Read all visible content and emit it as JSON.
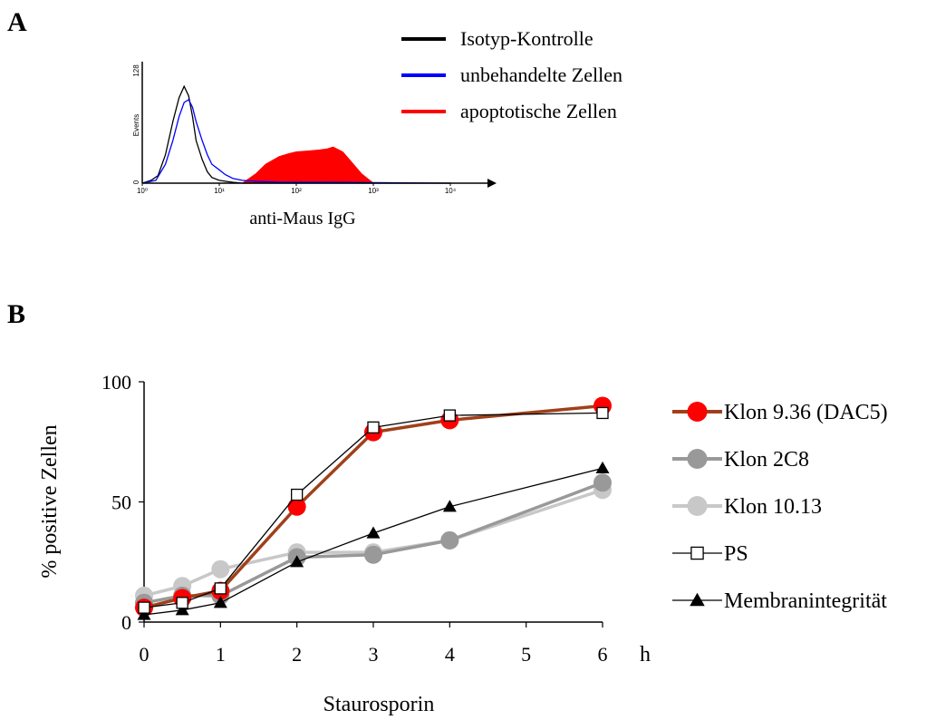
{
  "panel_a": {
    "letter": "A",
    "legend": [
      {
        "label": "Isotyp-Kontrolle",
        "color": "#000000"
      },
      {
        "label": "unbehandelte Zellen",
        "color": "#0000ff"
      },
      {
        "label": "apoptotische Zellen",
        "color": "#ff0000"
      }
    ],
    "y_axis_label": "Events",
    "y_max_label": "128",
    "y_min_label": "0",
    "x_ticks": [
      "10⁰",
      "10¹",
      "10²",
      "10³",
      "10⁴"
    ],
    "x_axis_label": "anti-Maus IgG"
  },
  "panel_b": {
    "letter": "B"
  },
  "chart_data": [
    {
      "type": "area",
      "description_source": "flow cytometry histogram",
      "xlabel": "anti-Maus IgG",
      "ylabel": "Events",
      "x_scale": "log",
      "xlim": [
        1,
        10000
      ],
      "ylim": [
        0,
        128
      ],
      "series": [
        {
          "name": "Isotyp-Kontrolle",
          "color": "#000000",
          "style": "line",
          "x": [
            1,
            1.3,
            1.6,
            2,
            2.5,
            3,
            3.5,
            4,
            4.5,
            5,
            6,
            7,
            8,
            10,
            12,
            15,
            20,
            30,
            100,
            10000
          ],
          "y": [
            0,
            3,
            8,
            30,
            65,
            90,
            102,
            92,
            70,
            45,
            25,
            12,
            6,
            3,
            2,
            1,
            0,
            0,
            0,
            0
          ]
        },
        {
          "name": "unbehandelte Zellen",
          "color": "#0000ff",
          "style": "line",
          "x": [
            1,
            1.5,
            2,
            2.5,
            3,
            3.5,
            4,
            4.5,
            5,
            6,
            7,
            8,
            10,
            12,
            15,
            20,
            30,
            60,
            200,
            10000
          ],
          "y": [
            0,
            3,
            20,
            45,
            70,
            85,
            88,
            80,
            65,
            45,
            30,
            20,
            14,
            9,
            5,
            3,
            2,
            1,
            1,
            0
          ]
        },
        {
          "name": "apoptotische Zellen",
          "color": "#ff0000",
          "style": "fill",
          "x": [
            1,
            20,
            30,
            40,
            60,
            80,
            100,
            150,
            200,
            250,
            300,
            400,
            500,
            700,
            1000,
            10000
          ],
          "y": [
            0,
            0,
            10,
            20,
            28,
            31,
            33,
            34,
            35,
            36,
            38,
            33,
            24,
            10,
            0,
            0
          ]
        }
      ]
    },
    {
      "type": "line",
      "xlabel": "Staurosporin",
      "x_unit": "h",
      "ylabel": "% positive  Zellen",
      "x": [
        0,
        0.5,
        1,
        2,
        3,
        4,
        6
      ],
      "x_ticks": [
        "0",
        "1",
        "2",
        "3",
        "4",
        "5",
        "6"
      ],
      "y_ticks": [
        "0",
        "50",
        "100"
      ],
      "xlim": [
        0,
        6
      ],
      "ylim": [
        0,
        100
      ],
      "legend_position": "right",
      "series": [
        {
          "name": "Klon 9.36 (DAC5)",
          "color": "#a0401a",
          "marker_color": "#ff0000",
          "marker": "circle",
          "values": [
            6,
            10,
            13,
            48,
            79,
            84,
            90
          ]
        },
        {
          "name": "Klon 2C8",
          "color": "#999999",
          "marker_color": "#999999",
          "marker": "circle",
          "values": [
            8,
            11,
            11,
            27,
            28,
            34,
            58
          ]
        },
        {
          "name": "Klon 10.13",
          "color": "#c8c8c8",
          "marker_color": "#c8c8c8",
          "marker": "circle",
          "values": [
            11,
            15,
            22,
            29,
            29,
            34,
            55
          ]
        },
        {
          "name": "PS",
          "color": "#000000",
          "marker_color": "#ffffff",
          "marker": "square",
          "values": [
            6,
            8,
            14,
            53,
            81,
            86,
            87
          ]
        },
        {
          "name": "Membranintegrität",
          "color": "#000000",
          "marker_color": "#000000",
          "marker": "triangle",
          "values": [
            3,
            5,
            8,
            25,
            37,
            48,
            64
          ]
        }
      ]
    }
  ]
}
